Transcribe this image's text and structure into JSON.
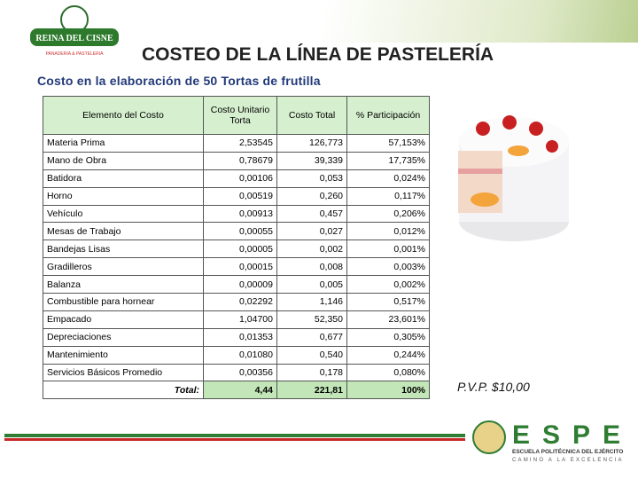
{
  "logo": {
    "name": "REINA DEL CISNE",
    "subtitle": "PANADERIA & PASTELERIA"
  },
  "header": {
    "title": "COSTEO DE LA LÍNEA DE PASTELERÍA",
    "subtitle": "Costo en la elaboración de 50 Tortas de frutilla"
  },
  "table": {
    "columns": [
      "Elemento del Costo",
      "Costo Unitario Torta",
      "Costo Total",
      "% Participación"
    ],
    "rows": [
      [
        "Materia Prima",
        "2,53545",
        "126,773",
        "57,153%"
      ],
      [
        "Mano de Obra",
        "0,78679",
        "39,339",
        "17,735%"
      ],
      [
        "Batidora",
        "0,00106",
        "0,053",
        "0,024%"
      ],
      [
        "Horno",
        "0,00519",
        "0,260",
        "0,117%"
      ],
      [
        "Vehículo",
        "0,00913",
        "0,457",
        "0,206%"
      ],
      [
        "Mesas de Trabajo",
        "0,00055",
        "0,027",
        "0,012%"
      ],
      [
        "Bandejas Lisas",
        "0,00005",
        "0,002",
        "0,001%"
      ],
      [
        "Gradilleros",
        "0,00015",
        "0,008",
        "0,003%"
      ],
      [
        "Balanza",
        "0,00009",
        "0,005",
        "0,002%"
      ],
      [
        "Combustible para hornear",
        "0,02292",
        "1,146",
        "0,517%"
      ],
      [
        "Empacado",
        "1,04700",
        "52,350",
        "23,601%"
      ],
      [
        "Depreciaciones",
        "0,01353",
        "0,677",
        "0,305%"
      ],
      [
        "Mantenimiento",
        "0,01080",
        "0,540",
        "0,244%"
      ],
      [
        "Servicios Básicos Promedio",
        "0,00356",
        "0,178",
        "0,080%"
      ]
    ],
    "total": [
      "Total:",
      "4,44",
      "221,81",
      "100%"
    ]
  },
  "price": "P.V.P. $10,00",
  "footer": {
    "brand": "ESPE",
    "institution": "ESCUELA POLITÉCNICA DEL EJÉRCITO",
    "motto": "CAMINO A LA EXCELENCIA"
  }
}
